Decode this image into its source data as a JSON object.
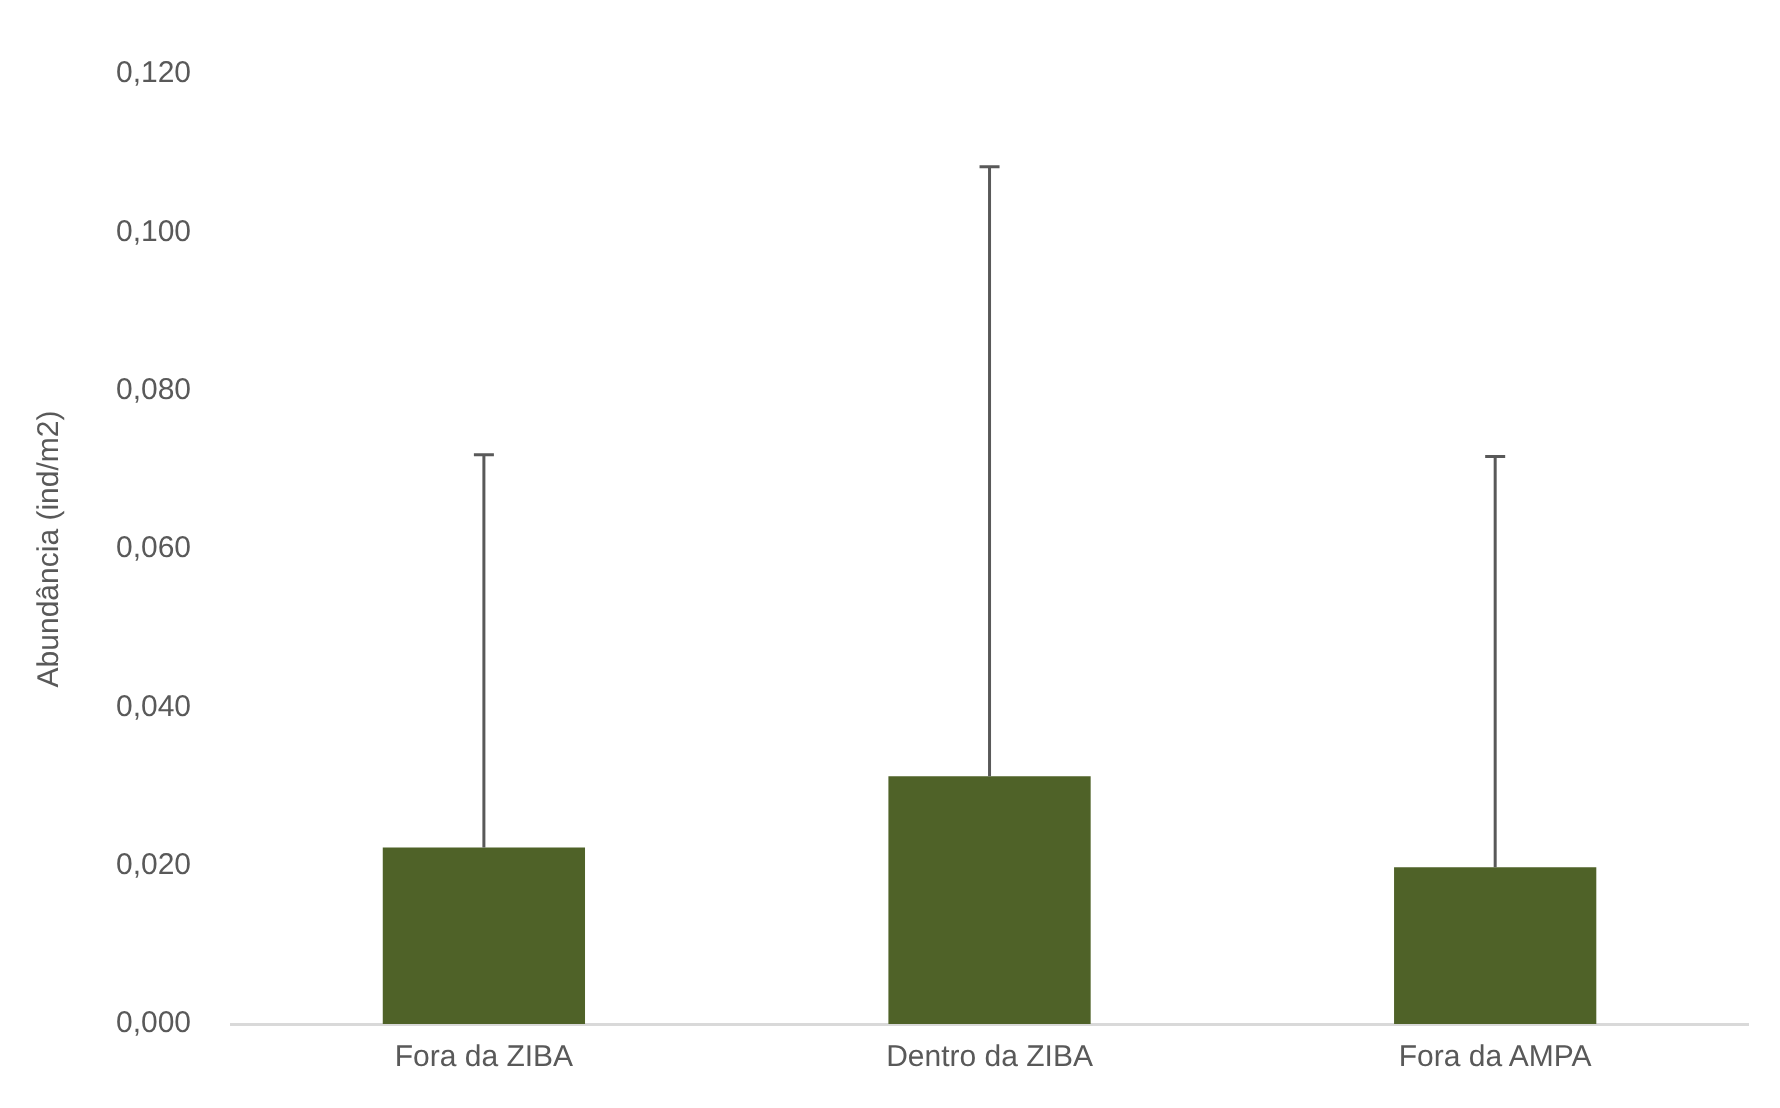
{
  "chart_data": {
    "type": "bar",
    "ylabel": "Abundância (ind/m2)",
    "categories": [
      "Fora da ZIBA",
      "Dentro da ZIBA",
      "Fora da AMPA"
    ],
    "values": [
      0.0223,
      0.0313,
      0.0198
    ],
    "errors": [
      [
        0.0223,
        0.0719
      ],
      [
        0.0313,
        0.1083
      ],
      [
        0.0198,
        0.0717
      ]
    ],
    "color": "#4f6228",
    "ylim": [
      0,
      0.12
    ],
    "yticks": [
      {
        "value": 0,
        "label": "0,000"
      },
      {
        "value": 0.02,
        "label": "0,020"
      },
      {
        "value": 0.04,
        "label": "0,040"
      },
      {
        "value": 0.06,
        "label": "0,060"
      },
      {
        "value": 0.08,
        "label": "0,080"
      },
      {
        "value": 0.1,
        "label": "0,100"
      },
      {
        "value": 0.12,
        "label": "0,120"
      }
    ],
    "grid": false,
    "legend": false
  }
}
